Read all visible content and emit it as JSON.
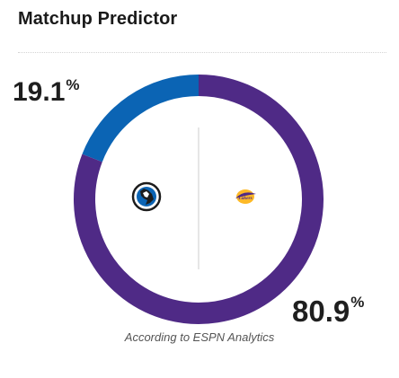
{
  "header": {
    "title": "Matchup Predictor"
  },
  "away": {
    "win_pct": 19.1,
    "pct_text": "19.1",
    "color": "#0b64b4",
    "logo": "mavericks-logo"
  },
  "home": {
    "win_pct": 80.9,
    "pct_text": "80.9",
    "color": "#4f2a86",
    "logo": "lakers-logo",
    "logo_text": "Lakers"
  },
  "percent_sign": "%",
  "source": "According to ESPN Analytics"
}
